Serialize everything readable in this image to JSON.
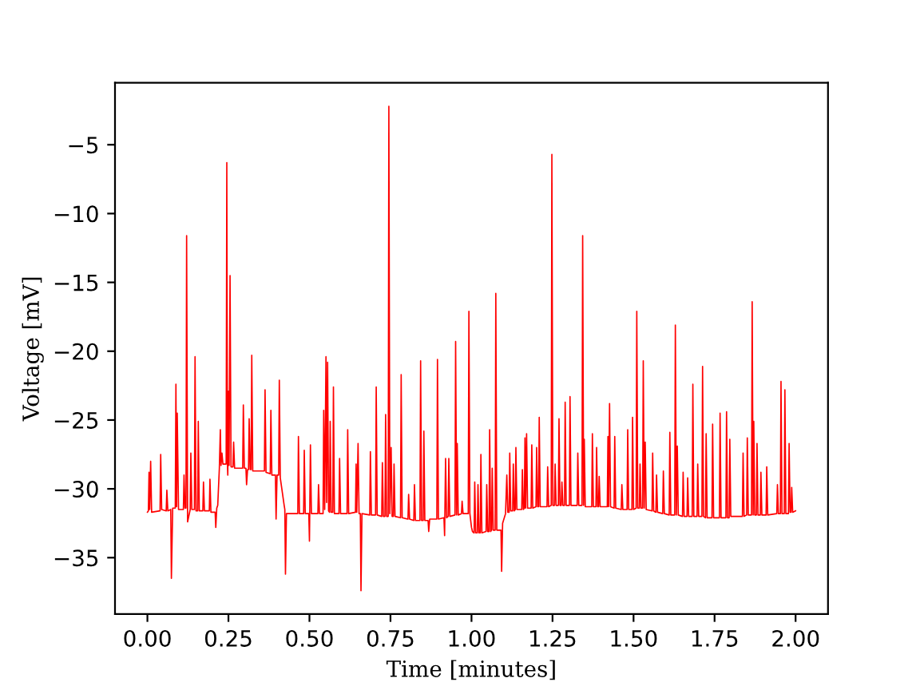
{
  "chart_data": {
    "type": "line",
    "xlabel": "Time [minutes]",
    "ylabel": "Voltage [mV]",
    "xlim": [
      -0.1,
      2.1
    ],
    "ylim": [
      -39.1,
      -0.5
    ],
    "xticks": [
      {
        "value": 0,
        "label": "0.00"
      },
      {
        "value": 0.25,
        "label": "0.25"
      },
      {
        "value": 0.5,
        "label": "0.50"
      },
      {
        "value": 0.75,
        "label": "0.75"
      },
      {
        "value": 1,
        "label": "1.00"
      },
      {
        "value": 1.25,
        "label": "1.25"
      },
      {
        "value": 1.5,
        "label": "1.50"
      },
      {
        "value": 1.75,
        "label": "1.75"
      },
      {
        "value": 2,
        "label": "2.00"
      }
    ],
    "yticks": [
      {
        "value": -35,
        "label": "−35"
      },
      {
        "value": -30,
        "label": "−30"
      },
      {
        "value": -25,
        "label": "−25"
      },
      {
        "value": -20,
        "label": "−20"
      },
      {
        "value": -15,
        "label": "−15"
      },
      {
        "value": -10,
        "label": "−10"
      },
      {
        "value": -5,
        "label": "−5"
      }
    ],
    "line_style": "solid",
    "x": [
      0.0,
      0.003,
      0.005,
      0.007,
      0.01,
      0.013,
      0.039,
      0.041,
      0.044,
      0.058,
      0.06,
      0.063,
      0.072,
      0.074,
      0.078,
      0.086,
      0.088,
      0.09,
      0.092,
      0.096,
      0.111,
      0.113,
      0.116,
      0.119,
      0.121,
      0.124,
      0.132,
      0.134,
      0.137,
      0.145,
      0.147,
      0.15,
      0.155,
      0.157,
      0.16,
      0.171,
      0.173,
      0.176,
      0.191,
      0.193,
      0.196,
      0.209,
      0.211,
      0.214,
      0.217,
      0.222,
      0.225,
      0.227,
      0.23,
      0.233,
      0.243,
      0.245,
      0.247,
      0.248,
      0.25,
      0.252,
      0.255,
      0.258,
      0.264,
      0.266,
      0.269,
      0.294,
      0.296,
      0.299,
      0.304,
      0.306,
      0.309,
      0.312,
      0.314,
      0.317,
      0.32,
      0.322,
      0.325,
      0.361,
      0.363,
      0.366,
      0.379,
      0.381,
      0.384,
      0.395,
      0.397,
      0.4,
      0.405,
      0.407,
      0.41,
      0.422,
      0.424,
      0.426,
      0.429,
      0.464,
      0.466,
      0.469,
      0.482,
      0.484,
      0.487,
      0.498,
      0.5,
      0.503,
      0.506,
      0.526,
      0.528,
      0.531,
      0.542,
      0.544,
      0.547,
      0.551,
      0.553,
      0.556,
      0.559,
      0.562,
      0.564,
      0.567,
      0.572,
      0.574,
      0.577,
      0.591,
      0.593,
      0.596,
      0.616,
      0.618,
      0.621,
      0.642,
      0.644,
      0.646,
      0.65,
      0.653,
      0.657,
      0.659,
      0.662,
      0.686,
      0.688,
      0.691,
      0.704,
      0.706,
      0.709,
      0.723,
      0.725,
      0.728,
      0.733,
      0.735,
      0.738,
      0.743,
      0.745,
      0.748,
      0.752,
      0.755,
      0.759,
      0.761,
      0.764,
      0.781,
      0.783,
      0.786,
      0.804,
      0.806,
      0.809,
      0.822,
      0.824,
      0.827,
      0.841,
      0.843,
      0.846,
      0.851,
      0.853,
      0.856,
      0.866,
      0.868,
      0.871,
      0.893,
      0.895,
      0.898,
      0.915,
      0.917,
      0.92,
      0.923,
      0.928,
      0.93,
      0.933,
      0.949,
      0.951,
      0.954,
      0.956,
      0.959,
      0.969,
      0.971,
      0.974,
      0.99,
      0.992,
      0.995,
      1.0,
      1.003,
      1.008,
      1.01,
      1.013,
      1.018,
      1.02,
      1.023,
      1.027,
      1.029,
      1.032,
      1.045,
      1.047,
      1.05,
      1.054,
      1.056,
      1.059,
      1.062,
      1.064,
      1.067,
      1.073,
      1.075,
      1.078,
      1.091,
      1.093,
      1.096,
      1.105,
      1.109,
      1.112,
      1.116,
      1.118,
      1.121,
      1.127,
      1.129,
      1.132,
      1.135,
      1.137,
      1.14,
      1.155,
      1.157,
      1.16,
      1.163,
      1.165,
      1.167,
      1.17,
      1.173,
      1.184,
      1.186,
      1.189,
      1.199,
      1.201,
      1.204,
      1.207,
      1.209,
      1.212,
      1.233,
      1.235,
      1.238,
      1.246,
      1.248,
      1.251,
      1.256,
      1.258,
      1.261,
      1.268,
      1.27,
      1.273,
      1.277,
      1.279,
      1.282,
      1.287,
      1.289,
      1.292,
      1.302,
      1.304,
      1.307,
      1.326,
      1.328,
      1.331,
      1.341,
      1.343,
      1.346,
      1.348,
      1.351,
      1.371,
      1.373,
      1.376,
      1.384,
      1.386,
      1.389,
      1.392,
      1.394,
      1.397,
      1.419,
      1.421,
      1.423,
      1.426,
      1.429,
      1.44,
      1.442,
      1.445,
      1.462,
      1.464,
      1.467,
      1.48,
      1.482,
      1.485,
      1.495,
      1.497,
      1.5,
      1.508,
      1.51,
      1.513,
      1.518,
      1.52,
      1.523,
      1.528,
      1.53,
      1.533,
      1.536,
      1.539,
      1.557,
      1.559,
      1.562,
      1.569,
      1.571,
      1.574,
      1.59,
      1.592,
      1.595,
      1.61,
      1.612,
      1.615,
      1.627,
      1.629,
      1.632,
      1.635,
      1.638,
      1.651,
      1.653,
      1.656,
      1.665,
      1.667,
      1.67,
      1.681,
      1.683,
      1.686,
      1.696,
      1.698,
      1.701,
      1.711,
      1.713,
      1.716,
      1.722,
      1.724,
      1.727,
      1.742,
      1.744,
      1.747,
      1.765,
      1.767,
      1.77,
      1.785,
      1.787,
      1.79,
      1.795,
      1.797,
      1.8,
      1.836,
      1.838,
      1.841,
      1.849,
      1.851,
      1.854,
      1.864,
      1.866,
      1.869,
      1.871,
      1.874,
      1.879,
      1.881,
      1.884,
      1.891,
      1.893,
      1.896,
      1.909,
      1.911,
      1.914,
      1.942,
      1.944,
      1.947,
      1.953,
      1.955,
      1.958,
      1.965,
      1.967,
      1.97,
      1.978,
      1.98,
      1.983,
      1.986,
      1.988,
      1.991,
      2.0
    ],
    "series": [
      {
        "color": "#ff0000",
        "values": [
          -31.7,
          -31.6,
          -28.8,
          -31.5,
          -28.0,
          -31.7,
          -31.6,
          -27.5,
          -31.5,
          -31.6,
          -30.1,
          -31.6,
          -31.5,
          -36.5,
          -31.4,
          -31.4,
          -22.4,
          -31.3,
          -24.5,
          -31.5,
          -31.5,
          -29.0,
          -31.4,
          -31.4,
          -11.6,
          -32.4,
          -31.5,
          -27.4,
          -31.5,
          -31.5,
          -20.4,
          -31.6,
          -31.6,
          -25.1,
          -31.6,
          -31.6,
          -29.5,
          -31.6,
          -31.6,
          -29.3,
          -31.7,
          -31.7,
          -32.8,
          -31.4,
          -31.2,
          -28.5,
          -25.7,
          -28.3,
          -27.4,
          -28.2,
          -28.2,
          -6.3,
          -28.3,
          -29.0,
          -22.9,
          -28.3,
          -14.5,
          -28.4,
          -28.4,
          -26.6,
          -28.5,
          -28.5,
          -23.9,
          -28.5,
          -28.5,
          -29.7,
          -28.6,
          -28.6,
          -24.9,
          -28.6,
          -28.6,
          -20.3,
          -28.7,
          -28.7,
          -22.8,
          -28.8,
          -28.9,
          -24.3,
          -29.0,
          -29.0,
          -32.2,
          -29.0,
          -29.0,
          -22.1,
          -29.2,
          -31.2,
          -31.5,
          -36.2,
          -31.8,
          -31.8,
          -26.2,
          -31.8,
          -31.8,
          -27.2,
          -31.8,
          -31.8,
          -33.8,
          -26.8,
          -31.8,
          -31.8,
          -29.7,
          -31.8,
          -31.8,
          -24.3,
          -31.5,
          -20.4,
          -31.0,
          -20.8,
          -31.6,
          -31.7,
          -25.1,
          -31.7,
          -31.7,
          -22.6,
          -31.8,
          -31.8,
          -27.8,
          -31.8,
          -31.8,
          -25.7,
          -31.8,
          -31.7,
          -28.2,
          -31.7,
          -26.7,
          -31.8,
          -31.8,
          -37.4,
          -31.8,
          -31.9,
          -27.3,
          -31.9,
          -31.9,
          -22.6,
          -31.9,
          -32.0,
          -28.1,
          -32.0,
          -32.0,
          -24.6,
          -32.0,
          -32.0,
          -2.2,
          -31.8,
          -27.0,
          -32.0,
          -32.0,
          -28.2,
          -32.0,
          -32.1,
          -21.7,
          -32.1,
          -32.2,
          -30.4,
          -32.2,
          -32.3,
          -29.7,
          -32.3,
          -32.3,
          -20.7,
          -32.3,
          -32.3,
          -25.8,
          -32.3,
          -32.3,
          -33.1,
          -32.2,
          -32.2,
          -20.6,
          -32.2,
          -32.1,
          -33.4,
          -27.8,
          -32.1,
          -32.0,
          -27.8,
          -32.0,
          -31.9,
          -19.3,
          -31.9,
          -26.7,
          -31.9,
          -31.8,
          -30.9,
          -31.8,
          -31.8,
          -17.1,
          -31.8,
          -32.8,
          -33.1,
          -33.2,
          -29.5,
          -33.2,
          -33.2,
          -29.7,
          -33.2,
          -33.2,
          -27.5,
          -33.2,
          -33.1,
          -29.7,
          -33.1,
          -33.1,
          -25.7,
          -33.1,
          -33.0,
          -28.5,
          -33.0,
          -33.0,
          -15.8,
          -33.0,
          -33.0,
          -36.0,
          -32.5,
          -31.8,
          -29.0,
          -31.7,
          -31.7,
          -27.4,
          -31.6,
          -31.6,
          -28.2,
          -31.6,
          -31.5,
          -27.0,
          -31.5,
          -31.5,
          -28.6,
          -31.5,
          -31.4,
          -26.3,
          -31.4,
          -26.0,
          -31.4,
          -31.4,
          -26.8,
          -31.4,
          -31.3,
          -27.0,
          -31.3,
          -31.3,
          -24.8,
          -31.3,
          -31.3,
          -28.4,
          -31.3,
          -31.2,
          -5.7,
          -31.2,
          -31.2,
          -28.2,
          -31.2,
          -31.2,
          -24.9,
          -31.2,
          -31.2,
          -29.5,
          -31.2,
          -31.2,
          -23.7,
          -31.2,
          -31.2,
          -23.3,
          -31.2,
          -31.2,
          -27.4,
          -31.2,
          -31.2,
          -11.6,
          -31.2,
          -26.4,
          -31.3,
          -31.3,
          -26.0,
          -31.3,
          -31.3,
          -27.0,
          -31.3,
          -31.3,
          -29.1,
          -31.3,
          -31.3,
          -26.2,
          -31.3,
          -23.8,
          -31.3,
          -31.4,
          -26.2,
          -31.4,
          -31.5,
          -29.7,
          -31.5,
          -31.5,
          -25.7,
          -31.5,
          -31.5,
          -24.8,
          -31.5,
          -31.4,
          -17.1,
          -31.4,
          -31.4,
          -28.2,
          -31.4,
          -31.4,
          -20.7,
          -31.4,
          -26.6,
          -31.5,
          -31.6,
          -27.4,
          -31.6,
          -31.7,
          -29.0,
          -31.7,
          -31.8,
          -28.7,
          -31.8,
          -31.9,
          -25.9,
          -31.9,
          -31.9,
          -18.1,
          -31.9,
          -26.9,
          -31.9,
          -32.0,
          -28.8,
          -32.0,
          -32.0,
          -29.2,
          -32.0,
          -32.0,
          -22.4,
          -32.0,
          -32.0,
          -28.2,
          -32.0,
          -32.0,
          -21.1,
          -32.0,
          -32.1,
          -26.0,
          -32.1,
          -32.1,
          -25.3,
          -32.1,
          -32.1,
          -24.5,
          -32.1,
          -32.1,
          -24.4,
          -32.1,
          -32.1,
          -26.4,
          -32.0,
          -32.0,
          -27.4,
          -32.0,
          -31.9,
          -26.3,
          -31.9,
          -31.9,
          -16.4,
          -31.9,
          -25.1,
          -31.9,
          -31.9,
          -26.7,
          -31.9,
          -31.9,
          -28.8,
          -31.9,
          -31.9,
          -28.4,
          -31.9,
          -31.8,
          -29.7,
          -31.8,
          -31.8,
          -22.2,
          -31.8,
          -31.8,
          -22.8,
          -31.8,
          -31.8,
          -26.7,
          -31.7,
          -31.7,
          -29.9,
          -31.7,
          -31.6
        ]
      }
    ]
  }
}
